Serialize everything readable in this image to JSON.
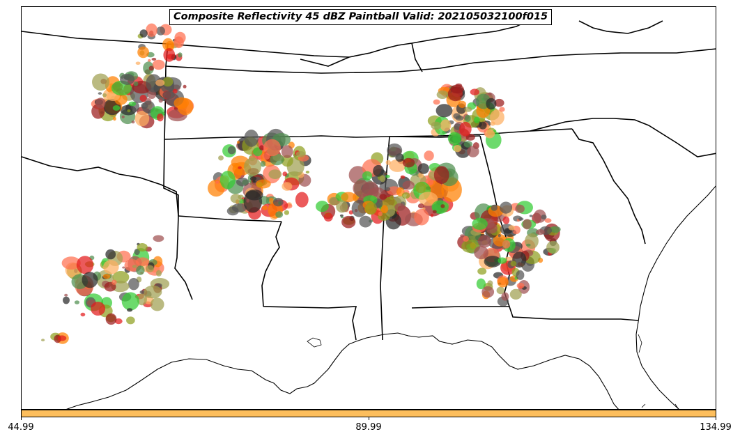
{
  "title": "Composite Reflectivity 45 dBZ Paintball Valid: 202105032100f015",
  "colorbar": {
    "color": "#fdbe5c",
    "tick_labels": [
      "44.99",
      "89.99",
      "134.99"
    ]
  },
  "member_colors": [
    "#e31a1c",
    "#ff6f4f",
    "#ff7f00",
    "#fdae61",
    "#33cc33",
    "#4f8f4f",
    "#8fa020",
    "#a0a050",
    "#9b1b1b",
    "#a05050",
    "#555555",
    "#2a2a2a"
  ]
}
